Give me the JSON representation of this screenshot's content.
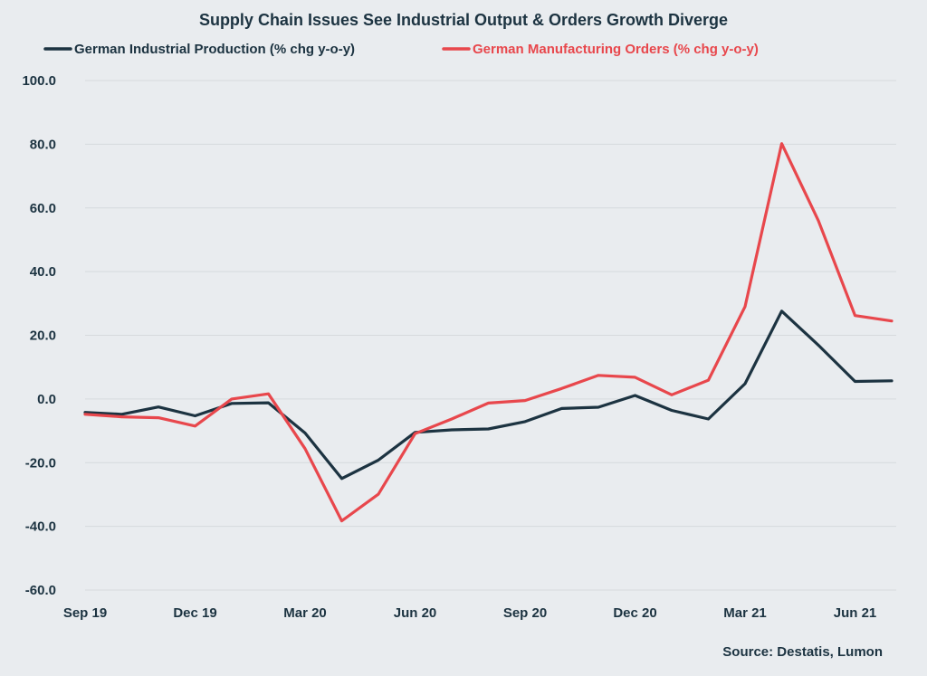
{
  "chart_data": {
    "type": "line",
    "title": "Supply Chain Issues See Industrial Output & Orders Growth Diverge",
    "source": "Source: Destatis, Lumon",
    "ylim": [
      -60,
      100
    ],
    "y_ticks": [
      "100.0",
      "80.0",
      "60.0",
      "40.0",
      "20.0",
      "0.0",
      "-20.0",
      "-40.0",
      "-60.0"
    ],
    "y_tick_values": [
      100,
      80,
      60,
      40,
      20,
      0,
      -20,
      -40,
      -60
    ],
    "x": [
      "Sep 19",
      "Oct 19",
      "Nov 19",
      "Dec 19",
      "Jan 20",
      "Feb 20",
      "Mar 20",
      "Apr 20",
      "May 20",
      "Jun 20",
      "Jul 20",
      "Aug 20",
      "Sep 20",
      "Oct 20",
      "Nov 20",
      "Dec 20",
      "Jan 21",
      "Feb 21",
      "Mar 21",
      "Apr 21",
      "May 21",
      "Jun 21",
      "Jul 21"
    ],
    "x_ticks": [
      "Sep 19",
      "Dec 19",
      "Mar 20",
      "Jun 20",
      "Sep 20",
      "Dec 20",
      "Mar 21",
      "Jun 21"
    ],
    "x_tick_indices": [
      0,
      3,
      6,
      9,
      12,
      15,
      18,
      21
    ],
    "grid": true,
    "legend_placement": "top-left",
    "series": [
      {
        "name": "German Industrial Production (% chg y-o-y)",
        "color": "#1c3341",
        "values": [
          -4.2,
          -4.8,
          -2.5,
          -5.3,
          -1.4,
          -1.2,
          -10.7,
          -25.0,
          -19.2,
          -10.5,
          -9.7,
          -9.4,
          -7.1,
          -3.0,
          -2.6,
          1.1,
          -3.6,
          -6.3,
          4.8,
          27.6,
          16.9,
          5.5,
          5.7
        ]
      },
      {
        "name": "German Manufacturing Orders (% chg y-o-y)",
        "color": "#e8474c",
        "values": [
          -4.8,
          -5.6,
          -5.9,
          -8.5,
          0.0,
          1.6,
          -15.6,
          -38.3,
          -29.9,
          -10.9,
          -6.3,
          -1.3,
          -0.5,
          3.3,
          7.4,
          6.8,
          1.3,
          5.9,
          29.0,
          80.2,
          56.0,
          26.2,
          24.5
        ]
      }
    ]
  }
}
